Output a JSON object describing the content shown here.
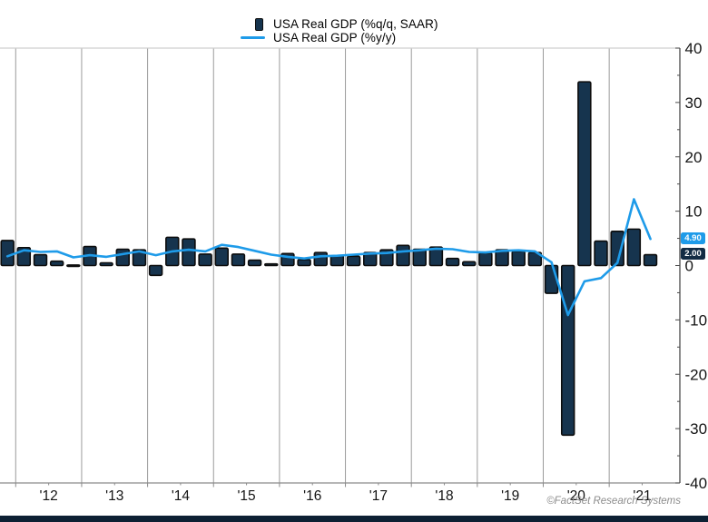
{
  "legend": {
    "position": "top-center",
    "items": [
      {
        "label": "USA Real GDP (%q/q, SAAR)",
        "marker": "bar-swatch",
        "color": "#16344e"
      },
      {
        "label": "USA Real GDP (%y/y)",
        "marker": "line-swatch",
        "color": "#1e9be9"
      }
    ]
  },
  "chart_data": {
    "type": "combo",
    "categories": [
      "2011 Q4",
      "2012 Q1",
      "2012 Q2",
      "2012 Q3",
      "2012 Q4",
      "2013 Q1",
      "2013 Q2",
      "2013 Q3",
      "2013 Q4",
      "2014 Q1",
      "2014 Q2",
      "2014 Q3",
      "2014 Q4",
      "2015 Q1",
      "2015 Q2",
      "2015 Q3",
      "2015 Q4",
      "2016 Q1",
      "2016 Q2",
      "2016 Q3",
      "2016 Q4",
      "2017 Q1",
      "2017 Q2",
      "2017 Q3",
      "2017 Q4",
      "2018 Q1",
      "2018 Q2",
      "2018 Q3",
      "2018 Q4",
      "2019 Q1",
      "2019 Q2",
      "2019 Q3",
      "2019 Q4",
      "2020 Q1",
      "2020 Q2",
      "2020 Q3",
      "2020 Q4",
      "2021 Q1",
      "2021 Q2",
      "2021 Q3"
    ],
    "series": [
      {
        "name": "USA Real GDP (%q/q, SAAR)",
        "type": "bar",
        "color": "#16344e",
        "border_color": "#0c0c0c",
        "values": [
          4.6,
          3.3,
          2.0,
          0.8,
          0.1,
          3.5,
          0.5,
          3.0,
          2.9,
          -1.8,
          5.2,
          4.9,
          2.1,
          3.2,
          2.1,
          1.0,
          0.3,
          2.2,
          1.1,
          2.4,
          1.8,
          1.7,
          2.4,
          2.9,
          3.7,
          3.0,
          3.4,
          1.3,
          0.7,
          2.3,
          2.9,
          2.6,
          2.4,
          -5.1,
          -31.2,
          33.8,
          4.5,
          6.3,
          6.7,
          2.0
        ]
      },
      {
        "name": "USA Real GDP (%y/y)",
        "type": "line",
        "color": "#1e9be9",
        "values": [
          1.7,
          2.8,
          2.5,
          2.6,
          1.5,
          1.9,
          1.6,
          2.1,
          2.6,
          1.9,
          2.6,
          2.9,
          2.6,
          3.8,
          3.4,
          2.7,
          2.0,
          1.6,
          1.3,
          1.7,
          1.8,
          2.0,
          2.2,
          2.3,
          2.6,
          2.8,
          3.1,
          3.0,
          2.5,
          2.4,
          2.7,
          2.8,
          2.6,
          0.6,
          -9.1,
          -2.9,
          -2.3,
          0.5,
          12.2,
          4.9
        ]
      }
    ],
    "ylim": [
      -40,
      40
    ],
    "y_ticks": [
      40,
      30,
      20,
      10,
      0,
      -10,
      -20,
      -30,
      -40
    ],
    "y_axis_side": "right",
    "x_tick_labels": [
      "'12",
      "'13",
      "'14",
      "'15",
      "'16",
      "'17",
      "'18",
      "'19",
      "'20",
      "'21"
    ],
    "grid": "vertical-year-gridlines",
    "last_value_labels": {
      "line": {
        "label": "4.90",
        "bg": "#1e9be9"
      },
      "bar": {
        "label": "2.00",
        "bg": "#132c44"
      }
    },
    "colors": {
      "grid": "#9b9b9b",
      "top_border": "#cfcfcf",
      "x_axis": "#8a8a8a",
      "y_axis": "#4a4a4a",
      "bottom_strip": "#0d2033"
    }
  },
  "footer": {
    "credit": "©FactSet Research Systems"
  }
}
